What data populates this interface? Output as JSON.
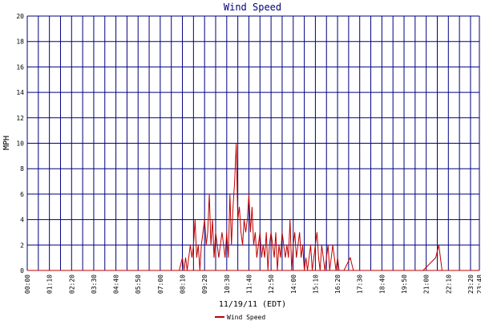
{
  "chart_data": {
    "type": "line",
    "title": "Wind Speed",
    "xlabel": "11/19/11 (EDT)",
    "ylabel": "MPH",
    "ylim": [
      0,
      20
    ],
    "yticks": [
      0,
      2,
      4,
      6,
      8,
      10,
      12,
      14,
      16,
      18,
      20
    ],
    "x_tick_labels": [
      "00:00",
      "01:10",
      "02:20",
      "03:30",
      "04:40",
      "05:50",
      "07:00",
      "08:10",
      "09:20",
      "10:30",
      "11:40",
      "12:50",
      "14:00",
      "15:10",
      "16:20",
      "17:30",
      "18:40",
      "19:50",
      "21:00",
      "22:10",
      "23:20",
      "23:48"
    ],
    "grid": true,
    "legend_position": "bottom-center",
    "colors": {
      "series": "#c00000",
      "grid": "#000080",
      "title": "#000080"
    },
    "series": [
      {
        "name": "Wind Speed",
        "x_minutes": [
          0,
          480,
          490,
          495,
          500,
          505,
          510,
          515,
          520,
          525,
          530,
          535,
          540,
          545,
          550,
          555,
          560,
          565,
          570,
          575,
          580,
          585,
          590,
          595,
          600,
          605,
          610,
          615,
          620,
          625,
          630,
          635,
          640,
          645,
          650,
          655,
          660,
          665,
          670,
          675,
          680,
          685,
          690,
          695,
          700,
          705,
          710,
          715,
          720,
          725,
          730,
          735,
          740,
          745,
          750,
          755,
          760,
          765,
          770,
          775,
          780,
          785,
          790,
          795,
          800,
          805,
          810,
          815,
          820,
          825,
          830,
          835,
          840,
          845,
          850,
          855,
          860,
          865,
          870,
          875,
          880,
          885,
          890,
          895,
          900,
          905,
          910,
          915,
          920,
          925,
          930,
          935,
          940,
          945,
          950,
          955,
          960,
          965,
          970,
          975,
          980,
          985,
          990,
          1000,
          1020,
          1030,
          1040,
          1250,
          1290,
          1300,
          1310,
          1428
        ],
        "values": [
          0,
          0,
          1,
          0,
          1,
          0,
          1,
          2,
          1,
          2,
          4,
          1,
          2,
          0,
          2,
          3,
          4,
          2,
          3,
          6,
          2,
          4,
          1,
          3,
          2,
          1,
          2,
          3,
          2,
          1,
          3,
          1,
          6,
          2,
          5,
          7,
          10,
          4,
          5,
          3,
          2,
          4,
          3,
          4,
          6,
          3,
          5,
          2,
          3,
          1,
          2,
          3,
          1,
          2,
          1,
          3,
          0,
          2,
          3,
          2,
          1,
          3,
          0,
          2,
          1,
          3,
          2,
          1,
          2,
          1,
          4,
          0,
          2,
          3,
          1,
          2,
          3,
          1,
          2,
          0,
          1,
          0,
          1,
          2,
          0,
          1,
          2,
          3,
          1,
          0,
          2,
          1,
          0,
          1,
          2,
          0,
          1,
          2,
          1,
          0,
          1,
          0,
          0,
          0,
          1,
          0,
          0,
          0,
          1,
          2,
          0,
          0
        ]
      }
    ]
  }
}
